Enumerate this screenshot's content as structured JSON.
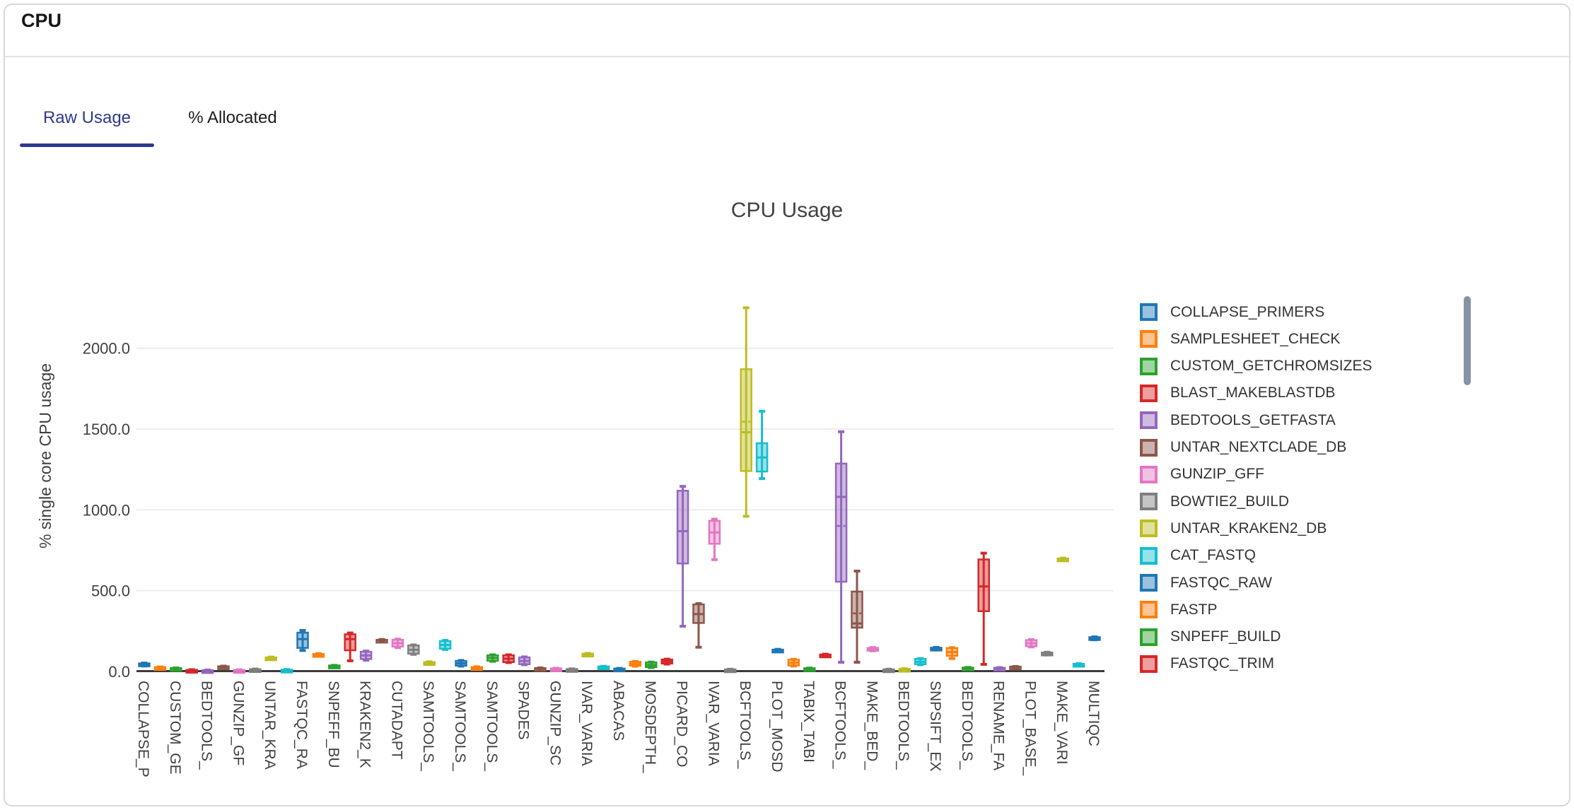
{
  "header": {
    "title": "CPU"
  },
  "tabs": [
    {
      "label": "Raw Usage",
      "active": true
    },
    {
      "label": "% Allocated",
      "active": false
    }
  ],
  "colors": {
    "tab_active": "#2d3a8c",
    "scrollbar": "#8892a7",
    "axis_line": "#3b3b3b",
    "gridline": "#ececec",
    "tick_text": "#3f3f3f"
  },
  "chart_data": {
    "type": "box",
    "title": "CPU Usage",
    "ylabel": "% single core CPU usage",
    "grid": true,
    "legend_position": "right",
    "ylim": [
      0,
      2330
    ],
    "yticks": [
      {
        "value": 0,
        "label": "0.0"
      },
      {
        "value": 500,
        "label": "500.0"
      },
      {
        "value": 1000,
        "label": "1000.0"
      },
      {
        "value": 1500,
        "label": "1500.0"
      },
      {
        "value": 2000,
        "label": "2000.0"
      }
    ],
    "palette": [
      "#1f77b4",
      "#ff7f0e",
      "#2ca02c",
      "#d62728",
      "#9467bd",
      "#8c564b",
      "#e377c2",
      "#7f7f7f",
      "#bcbd22",
      "#17becf"
    ],
    "legend": [
      "COLLAPSE_PRIMERS",
      "SAMPLESHEET_CHECK",
      "CUSTOM_GETCHROMSIZES",
      "BLAST_MAKEBLASTDB",
      "BEDTOOLS_GETFASTA",
      "UNTAR_NEXTCLADE_DB",
      "GUNZIP_GFF",
      "BOWTIE2_BUILD",
      "UNTAR_KRAKEN2_DB",
      "CAT_FASTQ",
      "FASTQC_RAW",
      "FASTP",
      "SNPEFF_BUILD",
      "FASTQC_TRIM"
    ],
    "boxes": [
      {
        "label": "COLLAPSE_P",
        "lo": 34,
        "q1": 36,
        "med": 42,
        "q3": 50,
        "hi": 52
      },
      {
        "label": "",
        "lo": 18,
        "q1": 20,
        "med": 23,
        "q3": 27,
        "hi": 28
      },
      {
        "label": "CUSTOM_GE",
        "lo": 14,
        "q1": 15,
        "med": 18,
        "q3": 21,
        "hi": 22
      },
      {
        "label": "",
        "lo": 5,
        "q1": 6,
        "med": 8,
        "q3": 10,
        "hi": 11
      },
      {
        "label": "BEDTOOLS_",
        "lo": 4,
        "q1": 5,
        "med": 6,
        "q3": 8,
        "hi": 9
      },
      {
        "label": "",
        "lo": 23,
        "q1": 25,
        "med": 28,
        "q3": 32,
        "hi": 33
      },
      {
        "label": "GUNZIP_GF",
        "lo": 5,
        "q1": 6,
        "med": 7,
        "q3": 9,
        "hi": 10
      },
      {
        "label": "",
        "lo": 9,
        "q1": 10,
        "med": 12,
        "q3": 14,
        "hi": 15
      },
      {
        "label": "UNTAR_KRA",
        "lo": 76,
        "q1": 78,
        "med": 82,
        "q3": 87,
        "hi": 89
      },
      {
        "label": "",
        "lo": 6,
        "q1": 7,
        "med": 9,
        "q3": 11,
        "hi": 12
      },
      {
        "label": "FASTQC_RA",
        "lo": 130,
        "q1": 146,
        "med": 200,
        "q3": 240,
        "hi": 254
      },
      {
        "label": "",
        "lo": 96,
        "q1": 99,
        "med": 103,
        "q3": 108,
        "hi": 110
      },
      {
        "label": "SNPEFF_BU",
        "lo": 26,
        "q1": 28,
        "med": 32,
        "q3": 37,
        "hi": 38
      },
      {
        "label": "",
        "lo": 66,
        "q1": 131,
        "med": 200,
        "q3": 230,
        "hi": 238
      },
      {
        "label": "KRAKEN2_K",
        "lo": 70,
        "q1": 77,
        "med": 99,
        "q3": 122,
        "hi": 126
      },
      {
        "label": "",
        "lo": 188,
        "q1": 190,
        "med": 193,
        "q3": 196,
        "hi": 198
      },
      {
        "label": "CUTADAPT",
        "lo": 148,
        "q1": 154,
        "med": 175,
        "q3": 196,
        "hi": 200
      },
      {
        "label": "",
        "lo": 106,
        "q1": 110,
        "med": 134,
        "q3": 161,
        "hi": 164
      },
      {
        "label": "SAMTOOLS_",
        "lo": 43,
        "q1": 46,
        "med": 51,
        "q3": 58,
        "hi": 60
      },
      {
        "label": "",
        "lo": 136,
        "q1": 141,
        "med": 164,
        "q3": 188,
        "hi": 192
      },
      {
        "label": "SAMTOOLS_",
        "lo": 33,
        "q1": 36,
        "med": 50,
        "q3": 65,
        "hi": 68
      },
      {
        "label": "",
        "lo": 16,
        "q1": 18,
        "med": 22,
        "q3": 27,
        "hi": 29
      },
      {
        "label": "SAMTOOLS_",
        "lo": 63,
        "q1": 66,
        "med": 84,
        "q3": 100,
        "hi": 103
      },
      {
        "label": "",
        "lo": 55,
        "q1": 58,
        "med": 79,
        "q3": 100,
        "hi": 103
      },
      {
        "label": "SPADES",
        "lo": 42,
        "q1": 45,
        "med": 65,
        "q3": 87,
        "hi": 90
      },
      {
        "label": "",
        "lo": 12,
        "q1": 14,
        "med": 17,
        "q3": 21,
        "hi": 22
      },
      {
        "label": "GUNZIP_SC",
        "lo": 12,
        "q1": 13,
        "med": 16,
        "q3": 19,
        "hi": 20
      },
      {
        "label": "",
        "lo": 9,
        "q1": 10,
        "med": 12,
        "q3": 15,
        "hi": 16
      },
      {
        "label": "IVAR_VARIA",
        "lo": 100,
        "q1": 102,
        "med": 106,
        "q3": 110,
        "hi": 112
      },
      {
        "label": "",
        "lo": 20,
        "q1": 22,
        "med": 26,
        "q3": 31,
        "hi": 32
      },
      {
        "label": "ABACAS",
        "lo": 11,
        "q1": 12,
        "med": 15,
        "q3": 18,
        "hi": 19
      },
      {
        "label": "",
        "lo": 33,
        "q1": 36,
        "med": 47,
        "q3": 60,
        "hi": 62
      },
      {
        "label": "MOSDEPTH_",
        "lo": 24,
        "q1": 27,
        "med": 40,
        "q3": 56,
        "hi": 58
      },
      {
        "label": "",
        "lo": 46,
        "q1": 49,
        "med": 62,
        "q3": 74,
        "hi": 76
      },
      {
        "label": "PICARD_CO",
        "lo": 280,
        "q1": 668,
        "med": 868,
        "q3": 1118,
        "hi": 1145
      },
      {
        "label": "",
        "lo": 150,
        "q1": 300,
        "med": 355,
        "q3": 415,
        "hi": 420
      },
      {
        "label": "IVAR_VARIA",
        "lo": 692,
        "q1": 790,
        "med": 860,
        "q3": 932,
        "hi": 942
      },
      {
        "label": "",
        "lo": 7,
        "q1": 8,
        "med": 10,
        "q3": 13,
        "hi": 14
      },
      {
        "label": "BCFTOOLS_",
        "lo": 960,
        "q1": 1240,
        "med": 1480,
        "q3": 1870,
        "hi": 2250,
        "mean": 1545
      },
      {
        "label": "",
        "lo": 1193,
        "q1": 1237,
        "med": 1324,
        "q3": 1412,
        "hi": 1610
      },
      {
        "label": "PLOT_MOSD",
        "lo": 124,
        "q1": 126,
        "med": 130,
        "q3": 135,
        "hi": 137
      },
      {
        "label": "",
        "lo": 34,
        "q1": 37,
        "med": 54,
        "q3": 73,
        "hi": 75
      },
      {
        "label": "TABIX_TABI",
        "lo": 12,
        "q1": 13,
        "med": 16,
        "q3": 20,
        "hi": 21
      },
      {
        "label": "",
        "lo": 94,
        "q1": 96,
        "med": 100,
        "q3": 105,
        "hi": 107
      },
      {
        "label": "BCFTOOLS_",
        "lo": 57,
        "q1": 555,
        "med": 1080,
        "q3": 1286,
        "hi": 1483,
        "mean": 900
      },
      {
        "label": "",
        "lo": 57,
        "q1": 271,
        "med": 297,
        "q3": 494,
        "hi": 621,
        "mean": 359
      },
      {
        "label": "MAKE_BED_",
        "lo": 128,
        "q1": 131,
        "med": 138,
        "q3": 146,
        "hi": 148
      },
      {
        "label": "",
        "lo": 7,
        "q1": 8,
        "med": 10,
        "q3": 13,
        "hi": 14
      },
      {
        "label": "BEDTOOLS_",
        "lo": 9,
        "q1": 10,
        "med": 13,
        "q3": 16,
        "hi": 17
      },
      {
        "label": "",
        "lo": 42,
        "q1": 45,
        "med": 60,
        "q3": 78,
        "hi": 80
      },
      {
        "label": "SNPSIFT_EX",
        "lo": 134,
        "q1": 136,
        "med": 141,
        "q3": 147,
        "hi": 149
      },
      {
        "label": "",
        "lo": 80,
        "q1": 97,
        "med": 120,
        "q3": 145,
        "hi": 147
      },
      {
        "label": "BEDTOOLS_",
        "lo": 16,
        "q1": 17,
        "med": 20,
        "q3": 24,
        "hi": 25
      },
      {
        "label": "",
        "lo": 44,
        "q1": 373,
        "med": 526,
        "q3": 693,
        "hi": 732
      },
      {
        "label": "RENAME_FA",
        "lo": 14,
        "q1": 16,
        "med": 19,
        "q3": 23,
        "hi": 24
      },
      {
        "label": "",
        "lo": 20,
        "q1": 22,
        "med": 26,
        "q3": 30,
        "hi": 31
      },
      {
        "label": "PLOT_BASE_",
        "lo": 152,
        "q1": 156,
        "med": 175,
        "q3": 194,
        "hi": 197
      },
      {
        "label": "",
        "lo": 102,
        "q1": 105,
        "med": 110,
        "q3": 117,
        "hi": 119
      },
      {
        "label": "MAKE_VARI",
        "lo": 688,
        "q1": 690,
        "med": 694,
        "q3": 699,
        "hi": 701
      },
      {
        "label": "",
        "lo": 36,
        "q1": 38,
        "med": 42,
        "q3": 47,
        "hi": 48
      },
      {
        "label": "MULTIQC",
        "lo": 196,
        "q1": 199,
        "med": 205,
        "q3": 212,
        "hi": 214
      }
    ]
  }
}
